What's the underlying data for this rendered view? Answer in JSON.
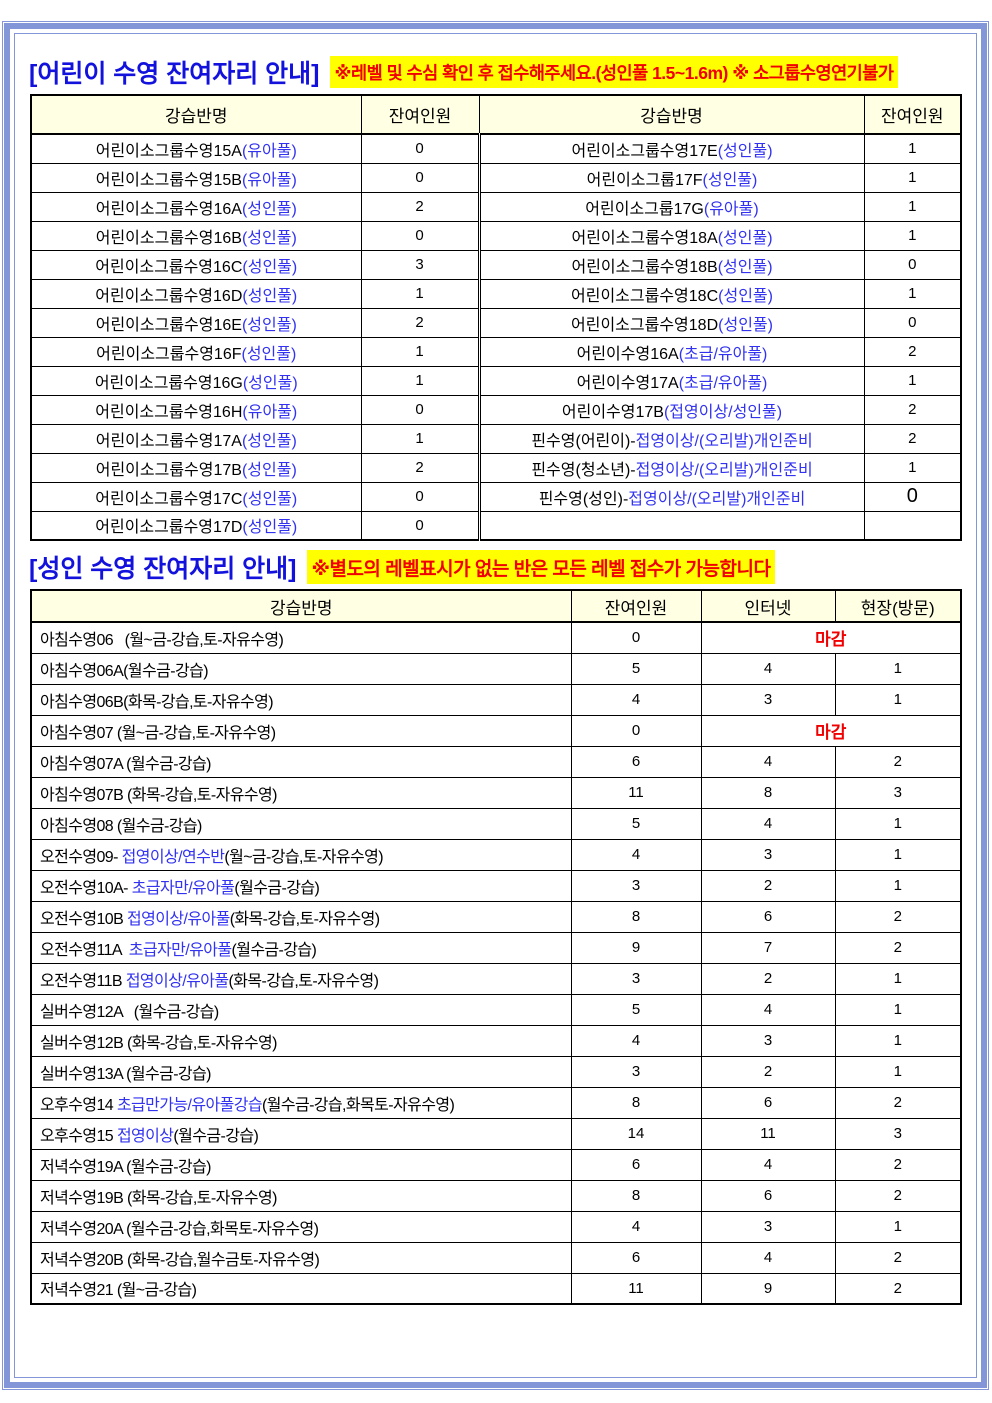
{
  "colors": {
    "frame_blue": "#8296D8",
    "title_blue": "#1212DC",
    "cell_blue": "#3232F0",
    "note_red": "#F00000",
    "note_bg": "#FFFF00",
    "header_bg": "#FFFFE3"
  },
  "children": {
    "title": "[어린이 수영 잔여자리 안내]",
    "note": "※레벨 및 수심 확인 후 접수해주세요.(성인풀 1.5~1.6m) ※ 소그룹수영연기불가",
    "headers": [
      "강습반명",
      "잔여인원",
      "강습반명",
      "잔여인원"
    ],
    "left_rows": [
      {
        "black": "어린이소그룹수영15A",
        "blue": "(유아풀)",
        "count": "0"
      },
      {
        "black": "어린이소그룹수영15B",
        "blue": "(유아풀)",
        "count": "0"
      },
      {
        "black": "어린이소그룹수영16A",
        "blue": "(성인풀)",
        "count": "2"
      },
      {
        "black": "어린이소그룹수영16B",
        "blue": "(성인풀)",
        "count": "0"
      },
      {
        "black": "어린이소그룹수영16C",
        "blue": "(성인풀)",
        "count": "3"
      },
      {
        "black": "어린이소그룹수영16D",
        "blue": "(성인풀)",
        "count": "1"
      },
      {
        "black": "어린이소그룹수영16E",
        "blue": "(성인풀)",
        "count": "2"
      },
      {
        "black": "어린이소그룹수영16F",
        "blue": "(성인풀)",
        "count": "1"
      },
      {
        "black": "어린이소그룹수영16G",
        "blue": "(성인풀)",
        "count": "1"
      },
      {
        "black": "어린이소그룹수영16H",
        "blue": "(유아풀)",
        "count": "0"
      },
      {
        "black": "어린이소그룹수영17A",
        "blue": "(성인풀)",
        "count": "1"
      },
      {
        "black": "어린이소그룹수영17B",
        "blue": "(성인풀)",
        "count": "2"
      },
      {
        "black": "어린이소그룹수영17C",
        "blue": "(성인풀)",
        "count": "0"
      },
      {
        "black": "어린이소그룹수영17D",
        "blue": "(성인풀)",
        "count": "0"
      }
    ],
    "right_rows": [
      {
        "black": "어린이소그룹수영17E",
        "blue": "(성인풀)",
        "count": "1"
      },
      {
        "black": "어린이소그룹17F",
        "blue": "(성인풀)",
        "count": "1"
      },
      {
        "black": "어린이소그룹17G",
        "blue": "(유아풀)",
        "count": "1"
      },
      {
        "black": "어린이소그룹수영18A",
        "blue": "(성인풀)",
        "count": "1"
      },
      {
        "black": "어린이소그룹수영18B",
        "blue": "(성인풀)",
        "count": "0"
      },
      {
        "black": "어린이소그룹수영18C",
        "blue": "(성인풀)",
        "count": "1"
      },
      {
        "black": "어린이소그룹수영18D",
        "blue": "(성인풀)",
        "count": "0"
      },
      {
        "black": "어린이수영16A",
        "blue": "(초급/유아풀)",
        "count": "2"
      },
      {
        "black": "어린이수영17A",
        "blue": "(초급/유아풀)",
        "count": "1"
      },
      {
        "black": "어린이수영17B",
        "blue": "(접영이상/성인풀)",
        "count": "2"
      },
      {
        "black": "핀수영(어린이)-",
        "blue": "접영이상/(오리발)개인준비",
        "count": "2"
      },
      {
        "black": "핀수영(청소년)-",
        "blue": "접영이상/(오리발)개인준비",
        "count": "1"
      },
      {
        "black": "핀수영(성인)-",
        "blue": "접영이상/(오리발)개인준비",
        "count": "0",
        "big": true
      },
      {
        "black": "",
        "blue": "",
        "count": ""
      }
    ]
  },
  "adult": {
    "title": "[성인 수영 잔여자리 안내]",
    "note": "※별도의 레벨표시가 없는 반은 모든 레벨 접수가 가능합니다",
    "headers": [
      "강습반명",
      "잔여인원",
      "인터넷",
      "현장(방문)"
    ],
    "closed_label": "마감",
    "rows": [
      {
        "pre": "아침수영06   (월~금-강습,토-자유수영)",
        "blue": "",
        "post": "",
        "remain": "0",
        "closed": true
      },
      {
        "pre": "아침수영06A(월수금-강습)",
        "blue": "",
        "post": "",
        "remain": "5",
        "internet": "4",
        "onsite": "1"
      },
      {
        "pre": "아침수영06B(화목-강습,토-자유수영)",
        "blue": "",
        "post": "",
        "remain": "4",
        "internet": "3",
        "onsite": "1"
      },
      {
        "pre": "아침수영07 (월~금-강습,토-자유수영)",
        "blue": "",
        "post": "",
        "remain": "0",
        "closed": true
      },
      {
        "pre": "아침수영07A (월수금-강습)",
        "blue": "",
        "post": "",
        "remain": "6",
        "internet": "4",
        "onsite": "2"
      },
      {
        "pre": "아침수영07B (화목-강습,토-자유수영)",
        "blue": "",
        "post": "",
        "remain": "11",
        "internet": "8",
        "onsite": "3"
      },
      {
        "pre": "아침수영08 (월수금-강습)",
        "blue": "",
        "post": "",
        "remain": "5",
        "internet": "4",
        "onsite": "1"
      },
      {
        "pre": "오전수영09- ",
        "blue": "접영이상/연수반",
        "post": "(월~금-강습,토-자유수영)",
        "remain": "4",
        "internet": "3",
        "onsite": "1"
      },
      {
        "pre": "오전수영10A- ",
        "blue": "초급자만/유아풀",
        "post": "(월수금-강습)",
        "remain": "3",
        "internet": "2",
        "onsite": "1"
      },
      {
        "pre": "오전수영10B ",
        "blue": "접영이상/유아풀",
        "post": "(화목-강습,토-자유수영)",
        "remain": "8",
        "internet": "6",
        "onsite": "2"
      },
      {
        "pre": "오전수영11A  ",
        "blue": "초급자만/유아풀",
        "post": "(월수금-강습)",
        "remain": "9",
        "internet": "7",
        "onsite": "2"
      },
      {
        "pre": "오전수영11B ",
        "blue": "접영이상/유아풀",
        "post": "(화목-강습,토-자유수영)",
        "remain": "3",
        "internet": "2",
        "onsite": "1"
      },
      {
        "pre": "실버수영12A   (월수금-강습)",
        "blue": "",
        "post": "",
        "remain": "5",
        "internet": "4",
        "onsite": "1"
      },
      {
        "pre": "실버수영12B (화목-강습,토-자유수영)",
        "blue": "",
        "post": "",
        "remain": "4",
        "internet": "3",
        "onsite": "1"
      },
      {
        "pre": "실버수영13A (월수금-강습)",
        "blue": "",
        "post": "",
        "remain": "3",
        "internet": "2",
        "onsite": "1"
      },
      {
        "pre": "오후수영14 ",
        "blue": "초급만가능/유아풀강습",
        "post": "(월수금-강습,화목토-자유수영)",
        "remain": "8",
        "internet": "6",
        "onsite": "2"
      },
      {
        "pre": "오후수영15 ",
        "blue": "접영이상",
        "post": "(월수금-강습)",
        "remain": "14",
        "internet": "11",
        "onsite": "3"
      },
      {
        "pre": "저녁수영19A (월수금-강습)",
        "blue": "",
        "post": "",
        "remain": "6",
        "internet": "4",
        "onsite": "2"
      },
      {
        "pre": "저녁수영19B (화목-강습,토-자유수영)",
        "blue": "",
        "post": "",
        "remain": "8",
        "internet": "6",
        "onsite": "2"
      },
      {
        "pre": "저녁수영20A (월수금-강습,화목토-자유수영)",
        "blue": "",
        "post": "",
        "remain": "4",
        "internet": "3",
        "onsite": "1"
      },
      {
        "pre": "저녁수영20B (화목-강습,월수금토-자유수영)",
        "blue": "",
        "post": "",
        "remain": "6",
        "internet": "4",
        "onsite": "2"
      },
      {
        "pre": "저녁수영21 (월~금-강습)",
        "blue": "",
        "post": "",
        "remain": "11",
        "internet": "9",
        "onsite": "2"
      }
    ]
  }
}
